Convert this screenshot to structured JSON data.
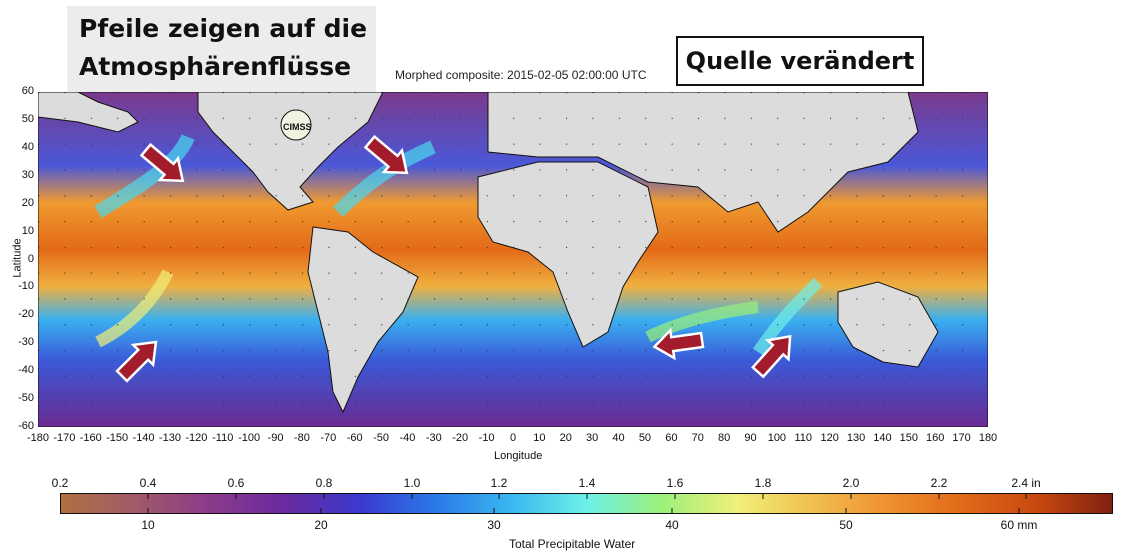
{
  "annotation": {
    "note_line1": "Pfeile zeigen auf die",
    "note_line2": "Atmosphärenflüsse",
    "source": "Quelle verändert"
  },
  "map": {
    "title": "Morphed composite: 2015-02-05 02:00:00 UTC",
    "xlabel": "Longitude",
    "ylabel": "Latitude",
    "logo": "CIMSS",
    "lon_ticks": [
      "-180",
      "-170",
      "-160",
      "-150",
      "-140",
      "-130",
      "-120",
      "-110",
      "-100",
      "-90",
      "-80",
      "-70",
      "-60",
      "-50",
      "-40",
      "-30",
      "-20",
      "-10",
      "0",
      "10",
      "20",
      "30",
      "40",
      "50",
      "60",
      "70",
      "80",
      "90",
      "100",
      "110",
      "120",
      "130",
      "140",
      "150",
      "160",
      "170",
      "180"
    ],
    "lat_ticks": [
      "60",
      "50",
      "40",
      "30",
      "20",
      "10",
      "0",
      "-10",
      "-20",
      "-30",
      "-40",
      "-50",
      "-60"
    ],
    "arrow_color": "#a31c2c"
  },
  "colorbar": {
    "title": "Total Precipitable Water",
    "inch_ticks": [
      "0.2",
      "0.4",
      "0.6",
      "0.8",
      "1.0",
      "1.2",
      "1.4",
      "1.6",
      "1.8",
      "2.0",
      "2.2",
      "2.4 in"
    ],
    "mm_ticks": [
      "10",
      "20",
      "30",
      "40",
      "50",
      "60 mm"
    ],
    "colors": [
      "#b07040",
      "#a05a6a",
      "#8a3a8a",
      "#6a2aa0",
      "#3a3ad0",
      "#2a7ae8",
      "#3ab8f0",
      "#6ef0e8",
      "#9af07a",
      "#f0f07a",
      "#f0c050",
      "#f09030",
      "#e06a18",
      "#c84810",
      "#802010"
    ]
  }
}
